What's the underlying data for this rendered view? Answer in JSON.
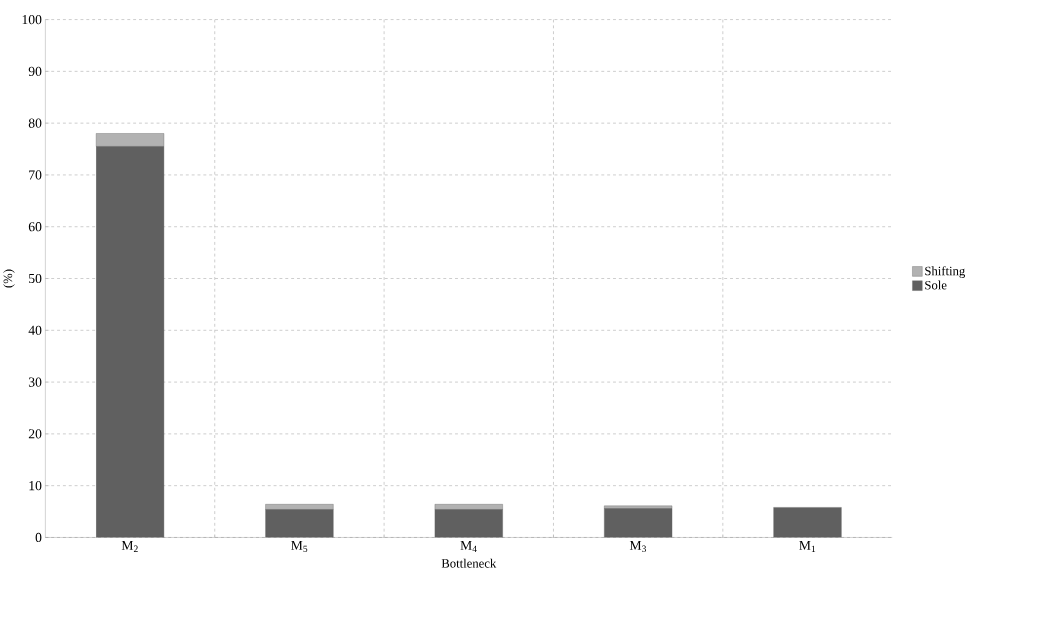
{
  "chart_data": {
    "type": "bar",
    "stacked": true,
    "xlabel": "Bottleneck",
    "ylabel": "(%)",
    "categories": [
      "M$_{2}$",
      "M$_{5}$",
      "M$_{4}$",
      "M$_{3}$",
      "M$_{1}$"
    ],
    "series": [
      {
        "name": "Sole",
        "color": "#606060",
        "values": [
          75.5,
          5.4,
          5.4,
          5.6,
          5.8
        ]
      },
      {
        "name": "Shifting",
        "color": "#b2b2b2",
        "values": [
          2.5,
          1.0,
          1.0,
          0.5,
          0
        ]
      }
    ],
    "ylim": [
      0,
      100
    ],
    "yticks": [
      0,
      10,
      20,
      30,
      40,
      50,
      60,
      70,
      80,
      90,
      100
    ],
    "grid": true,
    "legend": "right"
  }
}
